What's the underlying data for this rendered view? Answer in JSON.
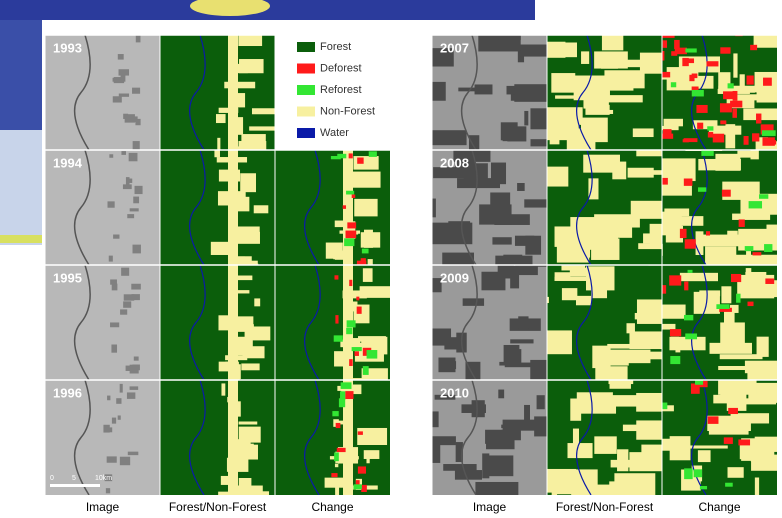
{
  "legend": [
    {
      "label": "Forest",
      "color": "#0b5e0b"
    },
    {
      "label": "Deforest",
      "color": "#ff1a1a"
    },
    {
      "label": "Reforest",
      "color": "#33e633"
    },
    {
      "label": "Non-Forest",
      "color": "#f7f0a0"
    },
    {
      "label": "Water",
      "color": "#0a1aa8"
    }
  ],
  "left_panel": {
    "years": [
      "1993",
      "1994",
      "1995",
      "1996"
    ],
    "columns": [
      "Image",
      "Forest/Non-Forest",
      "Change"
    ]
  },
  "right_panel": {
    "years": [
      "2007",
      "2008",
      "2009",
      "2010"
    ],
    "columns": [
      "Image",
      "Forest/Non-Forest",
      "Change"
    ]
  },
  "scale_bar": {
    "labels": [
      "0",
      "5",
      "10km"
    ]
  }
}
